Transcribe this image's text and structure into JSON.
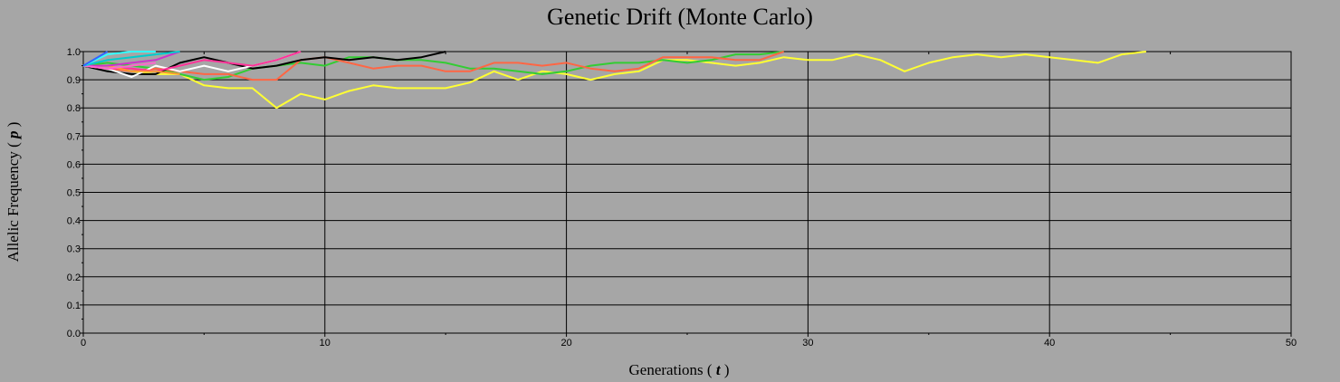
{
  "chart_data": {
    "type": "line",
    "title": "Genetic Drift (Monte Carlo)",
    "xlabel": {
      "text": "Generations",
      "symbol": "t"
    },
    "ylabel": {
      "text": "Allelic Frequency",
      "symbol": "p"
    },
    "xlim": [
      0,
      50
    ],
    "ylim": [
      0,
      1
    ],
    "x_ticks": [
      "0",
      "10",
      "20",
      "30",
      "40",
      "50"
    ],
    "y_ticks": [
      "0.0",
      "0.1",
      "0.2",
      "0.3",
      "0.4",
      "0.5",
      "0.6",
      "0.7",
      "0.8",
      "0.9",
      "1.0"
    ],
    "grid": true,
    "colors": {
      "background": "#a6a6a6",
      "plot_background": "#a6a6a6",
      "grid": "#000000"
    },
    "series": [
      {
        "color": "#ffff33",
        "x": [
          0,
          1,
          2,
          3,
          4,
          5,
          6,
          7,
          8,
          9,
          10,
          11,
          12,
          13,
          14,
          15,
          16,
          17,
          18,
          19,
          20,
          21,
          22,
          23,
          24,
          25,
          26,
          27,
          28,
          29,
          30,
          31,
          32,
          33,
          34,
          35,
          36,
          37,
          38,
          39,
          40,
          41,
          42,
          43,
          44
        ],
        "y": [
          0.95,
          0.95,
          0.93,
          0.92,
          0.92,
          0.88,
          0.87,
          0.87,
          0.8,
          0.85,
          0.83,
          0.86,
          0.88,
          0.87,
          0.87,
          0.87,
          0.89,
          0.93,
          0.9,
          0.93,
          0.92,
          0.9,
          0.92,
          0.93,
          0.97,
          0.97,
          0.96,
          0.95,
          0.96,
          0.98,
          0.97,
          0.97,
          0.99,
          0.97,
          0.93,
          0.96,
          0.98,
          0.99,
          0.98,
          0.99,
          0.98,
          0.97,
          0.96,
          0.99,
          1.0
        ]
      },
      {
        "color": "#33cc33",
        "x": [
          0,
          1,
          2,
          3,
          4,
          5,
          6,
          7,
          8,
          9,
          10,
          11,
          12,
          13,
          14,
          15,
          16,
          17,
          18,
          19,
          20,
          21,
          22,
          23,
          24,
          25,
          26,
          27,
          28,
          29
        ],
        "y": [
          0.95,
          0.96,
          0.95,
          0.94,
          0.92,
          0.9,
          0.91,
          0.94,
          0.95,
          0.96,
          0.95,
          0.98,
          0.98,
          0.97,
          0.97,
          0.96,
          0.94,
          0.94,
          0.93,
          0.92,
          0.93,
          0.95,
          0.96,
          0.96,
          0.97,
          0.96,
          0.97,
          0.99,
          0.99,
          1.0
        ]
      },
      {
        "color": "#ff6644",
        "x": [
          0,
          1,
          2,
          3,
          4,
          5,
          6,
          7,
          8,
          9,
          10,
          11,
          12,
          13,
          14,
          15,
          16,
          17,
          18,
          19,
          20,
          21,
          22,
          23,
          24,
          25,
          26,
          27,
          28,
          29
        ],
        "y": [
          0.95,
          0.94,
          0.93,
          0.94,
          0.93,
          0.92,
          0.92,
          0.9,
          0.9,
          0.97,
          0.98,
          0.96,
          0.94,
          0.95,
          0.95,
          0.93,
          0.93,
          0.96,
          0.96,
          0.95,
          0.96,
          0.94,
          0.93,
          0.94,
          0.98,
          0.98,
          0.98,
          0.97,
          0.97,
          1.0
        ]
      },
      {
        "color": "#000000",
        "x": [
          0,
          1,
          2,
          3,
          4,
          5,
          6,
          7,
          8,
          9,
          10,
          11,
          12,
          13,
          14,
          15
        ],
        "y": [
          0.95,
          0.93,
          0.92,
          0.92,
          0.96,
          0.98,
          0.96,
          0.94,
          0.95,
          0.97,
          0.98,
          0.97,
          0.98,
          0.97,
          0.98,
          1.0
        ]
      },
      {
        "color": "#ffffff",
        "x": [
          0,
          1,
          2,
          3,
          4,
          5,
          6,
          7,
          8,
          9
        ],
        "y": [
          0.95,
          0.94,
          0.91,
          0.95,
          0.93,
          0.95,
          0.93,
          0.95,
          0.97,
          1.0
        ]
      },
      {
        "color": "#ff3399",
        "x": [
          0,
          1,
          2,
          3,
          4,
          5,
          6,
          7,
          8,
          9
        ],
        "y": [
          0.95,
          0.94,
          0.94,
          0.93,
          0.95,
          0.97,
          0.96,
          0.95,
          0.97,
          1.0
        ]
      },
      {
        "color": "#ff9933",
        "x": [
          0,
          1,
          2,
          3,
          4
        ],
        "y": [
          0.95,
          0.95,
          0.93,
          0.93,
          0.92
        ]
      },
      {
        "color": "#cc33cc",
        "x": [
          0,
          1,
          2,
          3,
          4
        ],
        "y": [
          0.95,
          0.95,
          0.96,
          0.97,
          1.0
        ]
      },
      {
        "color": "#ff66cc",
        "x": [
          0,
          1,
          2,
          3
        ],
        "y": [
          0.95,
          0.94,
          0.95,
          0.96
        ]
      },
      {
        "color": "#00cccc",
        "x": [
          0,
          1,
          2,
          3,
          4
        ],
        "y": [
          0.95,
          0.97,
          0.98,
          0.99,
          1.0
        ]
      },
      {
        "color": "#33ffff",
        "x": [
          0,
          1,
          2,
          3
        ],
        "y": [
          0.95,
          0.99,
          1.0,
          1.0
        ]
      },
      {
        "color": "#3366ff",
        "x": [
          0,
          1
        ],
        "y": [
          0.95,
          1.0
        ]
      }
    ]
  }
}
